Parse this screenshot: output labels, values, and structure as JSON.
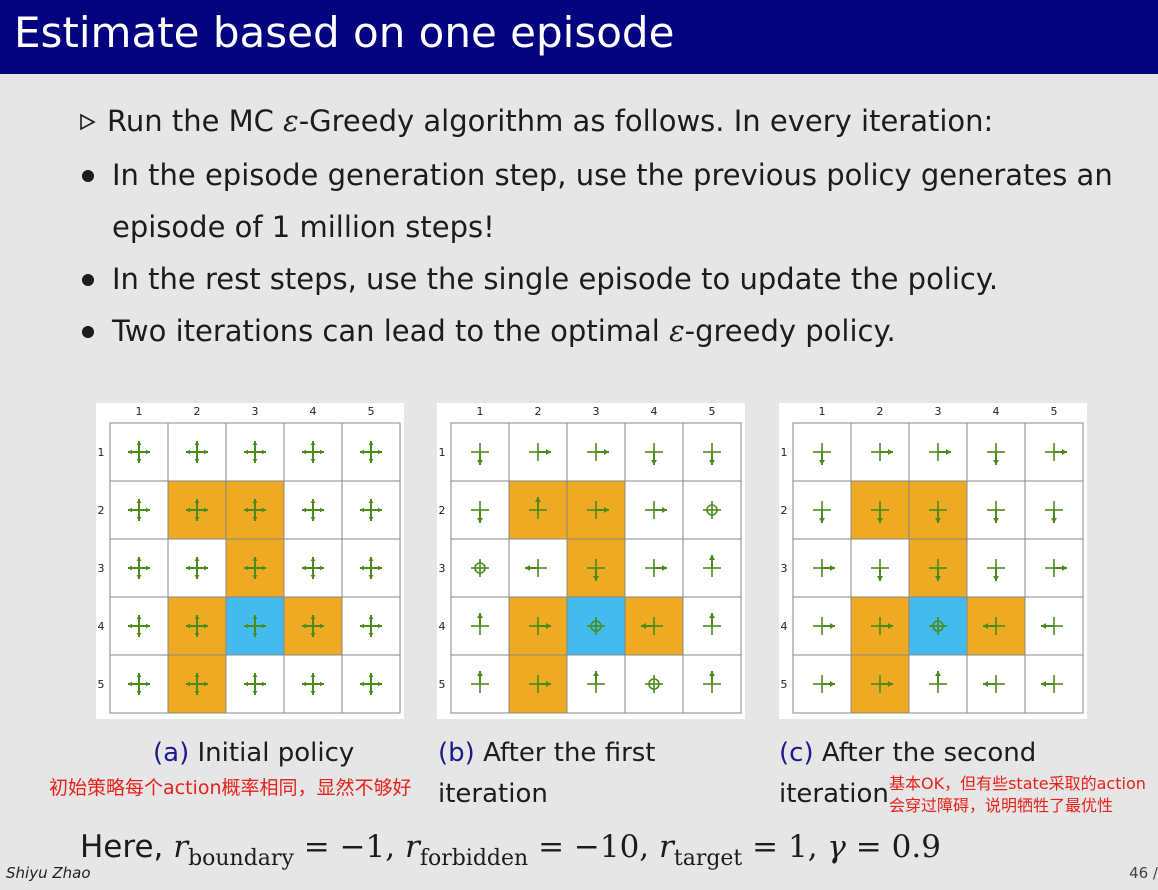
{
  "title": "Estimate based on one episode",
  "lead": {
    "pre": "Run the MC ",
    "symbol": "ε",
    "post": "-Greedy algorithm as follows. In every iteration:"
  },
  "bullets": [
    {
      "line1": "In the episode generation step, use the previous policy generates an",
      "line2": "episode of 1 million steps!"
    },
    {
      "line1": "In the rest steps, use the single episode to update the policy."
    },
    {
      "line1_pre": "Two iterations can lead to the optimal ",
      "symbol": "ε",
      "line1_post": "-greedy policy."
    }
  ],
  "grid": {
    "col_labels": [
      "1",
      "2",
      "3",
      "4",
      "5"
    ],
    "row_labels": [
      "1",
      "2",
      "3",
      "4",
      "5"
    ],
    "colors": {
      "empty": "#ffffff",
      "forbidden": "#eeaa22",
      "target": "#44bbee",
      "line": "#888888",
      "arrow": "#4a8b1c"
    },
    "cells": [
      [
        "E",
        "E",
        "E",
        "E",
        "E"
      ],
      [
        "E",
        "F",
        "F",
        "E",
        "E"
      ],
      [
        "E",
        "E",
        "F",
        "E",
        "E"
      ],
      [
        "E",
        "F",
        "T",
        "F",
        "E"
      ],
      [
        "E",
        "F",
        "E",
        "E",
        "E"
      ]
    ]
  },
  "policies": [
    {
      "label": "(a)",
      "caption_line1": "Initial policy",
      "caption_line2": "",
      "actions": [
        [
          "all",
          "all",
          "all",
          "all",
          "all"
        ],
        [
          "all",
          "all",
          "all",
          "all",
          "all"
        ],
        [
          "all",
          "all",
          "all",
          "all",
          "all"
        ],
        [
          "all",
          "all",
          "all",
          "all",
          "all"
        ],
        [
          "all",
          "all",
          "all",
          "all",
          "all"
        ]
      ]
    },
    {
      "label": "(b)",
      "caption_line1": "After the first",
      "caption_line2": "iteration",
      "actions": [
        [
          "down",
          "right",
          "right",
          "down",
          "down"
        ],
        [
          "down",
          "up",
          "right",
          "right",
          "stay"
        ],
        [
          "stay",
          "left",
          "down",
          "right",
          "up"
        ],
        [
          "up",
          "right",
          "stay",
          "left",
          "up"
        ],
        [
          "up",
          "right",
          "up",
          "stay",
          "up"
        ]
      ]
    },
    {
      "label": "(c)",
      "caption_line1": "After the second",
      "caption_line2": "iteration",
      "actions": [
        [
          "down",
          "right",
          "right",
          "down",
          "right"
        ],
        [
          "down",
          "down",
          "down",
          "down",
          "down"
        ],
        [
          "right",
          "down",
          "down",
          "down",
          "right"
        ],
        [
          "right",
          "right",
          "stay",
          "left",
          "left"
        ],
        [
          "right",
          "right",
          "up",
          "left",
          "left"
        ]
      ]
    }
  ],
  "notes": {
    "left": "初始策略每个action概率相同，显然不够好",
    "right_line1": "基本OK，但有些state采取的action",
    "right_line2": "会穿过障碍，说明牺牲了最优性"
  },
  "formula": {
    "lead": "Here,",
    "r": "r",
    "boundary_sub": "boundary",
    "boundary_val": "= −1,",
    "forbidden_sub": "forbidden",
    "forbidden_val": "= −10,",
    "target_sub": "target",
    "target_val": "= 1,",
    "gamma": "γ",
    "gamma_val": "= 0.9"
  },
  "footer": {
    "author": "Shiyu Zhao",
    "page": "46 /"
  }
}
